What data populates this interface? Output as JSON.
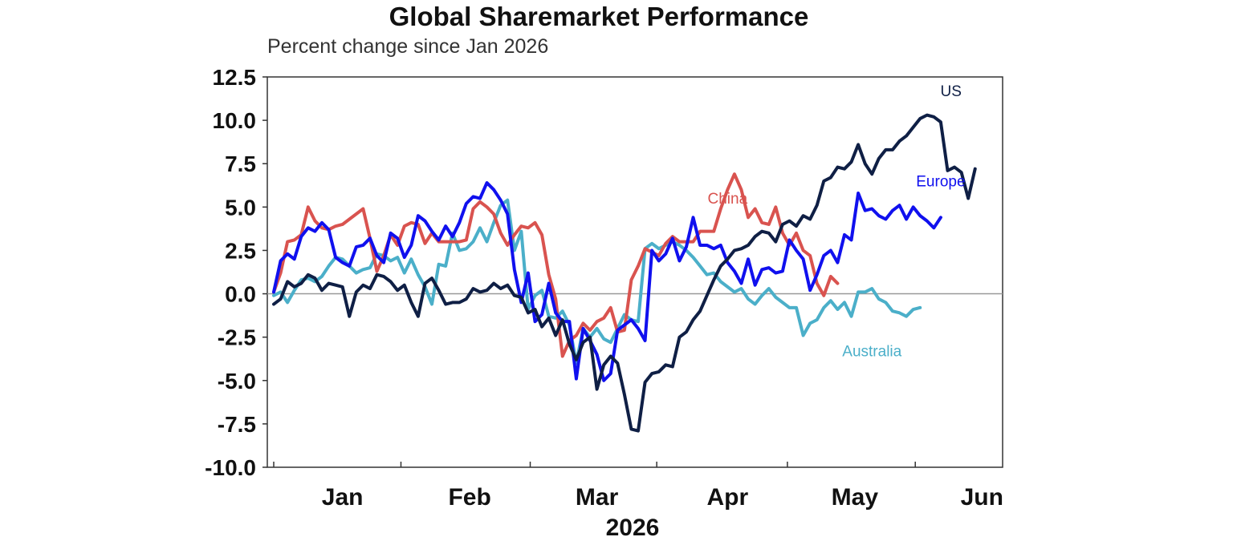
{
  "chart_data": {
    "type": "line",
    "title": "Global Sharemarket Performance",
    "subtitle": "Percent change since Jan 2026",
    "xlabel": "2026",
    "ylabel": "",
    "ylim": [
      -10.0,
      12.5
    ],
    "xlim": [
      0,
      106
    ],
    "yticks": [
      "12.5",
      "10.0",
      "7.5",
      "5.0",
      "2.5",
      "0.0",
      "-2.5",
      "-5.0",
      "-7.5",
      "-10.0"
    ],
    "ytick_values": [
      12.5,
      10.0,
      7.5,
      5.0,
      2.5,
      0.0,
      -2.5,
      -5.0,
      -7.5,
      -10.0
    ],
    "xticks": [
      {
        "label": "Jan",
        "x": 10
      },
      {
        "label": "Feb",
        "x": 28.5
      },
      {
        "label": "Mar",
        "x": 47
      },
      {
        "label": "Apr",
        "x": 66
      },
      {
        "label": "May",
        "x": 84.5
      },
      {
        "label": "Jun",
        "x": 103
      }
    ],
    "xtick_marks": [
      0,
      18.5,
      37.3,
      55.7,
      74.7,
      93.3
    ],
    "zero_line": true,
    "grid": false,
    "series": [
      {
        "name": "US",
        "color": "#0f1f45",
        "values": [
          -0.6,
          -0.3,
          0.7,
          0.4,
          0.6,
          1.1,
          0.9,
          0.2,
          0.6,
          0.5,
          0.4,
          -1.3,
          0.1,
          0.5,
          0.3,
          1.1,
          1.0,
          0.7,
          0.2,
          0.5,
          -0.5,
          -1.3,
          0.6,
          0.9,
          0.2,
          -0.6,
          -0.5,
          -0.5,
          -0.3,
          0.3,
          0.1,
          0.2,
          0.6,
          0.3,
          0.5,
          -0.1,
          -0.2,
          -1.1,
          -0.9,
          -1.9,
          -1.4,
          -2.4,
          -1.5,
          -2.9,
          -3.8,
          -2.8,
          -2.5,
          -5.5,
          -4.1,
          -3.6,
          -4.0,
          -5.8,
          -7.8,
          -7.9,
          -5.1,
          -4.6,
          -4.5,
          -4.1,
          -4.2,
          -2.5,
          -2.2,
          -1.5,
          -1.0,
          -0.1,
          0.8,
          1.6,
          2.0,
          2.5,
          2.6,
          2.8,
          3.3,
          3.6,
          3.5,
          3.0,
          4.0,
          4.2,
          3.9,
          4.5,
          4.3,
          5.1,
          6.5,
          6.7,
          7.3,
          7.2,
          7.6,
          8.6,
          7.5,
          6.9,
          7.8,
          8.3,
          8.3,
          8.8,
          9.1,
          9.6,
          10.1,
          10.3,
          10.2,
          9.9,
          7.1,
          7.3,
          7.0,
          5.5,
          7.2
        ],
        "label_pos": [
          98.5,
          11.4
        ]
      },
      {
        "name": "Europe",
        "color": "#1010ee",
        "values": [
          0.1,
          1.9,
          2.3,
          2.0,
          3.3,
          3.8,
          3.6,
          4.1,
          3.7,
          2.1,
          1.8,
          1.6,
          2.7,
          2.8,
          3.2,
          2.2,
          1.8,
          3.5,
          3.2,
          2.1,
          2.8,
          4.5,
          4.2,
          3.6,
          3.1,
          3.9,
          3.3,
          4.1,
          5.2,
          5.6,
          5.5,
          6.4,
          6.0,
          5.4,
          4.6,
          1.4,
          -0.5,
          1.2,
          -1.6,
          -1.2,
          0.6,
          -1.1,
          -1.6,
          -1.6,
          -4.9,
          -2.0,
          -2.7,
          -3.5,
          -5.0,
          -4.6,
          -2.1,
          -1.8,
          -1.5,
          -2.0,
          -2.7,
          2.5,
          1.9,
          2.3,
          3.2,
          1.9,
          2.7,
          4.4,
          2.8,
          2.8,
          2.6,
          2.8,
          1.8,
          1.3,
          0.6,
          2.0,
          0.5,
          1.4,
          1.5,
          1.2,
          1.3,
          3.1,
          2.5,
          2.0,
          0.2,
          1.1,
          2.2,
          2.5,
          1.8,
          3.4,
          3.1,
          5.8,
          4.8,
          4.9,
          4.5,
          4.3,
          4.8,
          5.1,
          4.3,
          5.0,
          4.5,
          4.2,
          3.8,
          4.4
        ],
        "label_pos": [
          97.0,
          6.2
        ]
      },
      {
        "name": "China",
        "color": "#d9534f",
        "values": [
          0.1,
          1.2,
          3.0,
          3.1,
          3.4,
          5.0,
          4.2,
          3.8,
          3.7,
          3.9,
          4.0,
          4.3,
          4.6,
          4.9,
          3.2,
          1.3,
          2.2,
          3.4,
          2.8,
          3.9,
          4.1,
          4.0,
          2.9,
          3.5,
          3.0,
          3.0,
          3.0,
          3.0,
          3.1,
          4.9,
          5.3,
          5.0,
          4.6,
          3.5,
          2.8,
          3.4,
          3.9,
          3.8,
          4.1,
          3.4,
          1.1,
          -0.3,
          -3.6,
          -2.7,
          -2.4,
          -1.7,
          -2.1,
          -1.6,
          -1.4,
          -0.8,
          -2.2,
          -2.1,
          0.8,
          1.6,
          2.6,
          2.4,
          2.2,
          2.9,
          3.3,
          3.0,
          3.0,
          3.0,
          3.6,
          3.6,
          3.6,
          4.9,
          6.0,
          6.9,
          6.0,
          4.4,
          4.9,
          4.1,
          4.0,
          5.0,
          3.5,
          2.8,
          3.5,
          2.5,
          2.2,
          0.6,
          -0.1,
          1.0,
          0.6
        ],
        "label_pos": [
          66.0,
          5.2
        ]
      },
      {
        "name": "Australia",
        "color": "#4bafc9",
        "values": [
          -0.1,
          0.1,
          -0.5,
          0.2,
          0.8,
          0.9,
          0.7,
          1.0,
          1.6,
          2.1,
          2.0,
          1.6,
          1.2,
          1.4,
          1.5,
          2.3,
          2.2,
          1.9,
          2.1,
          1.2,
          2.0,
          1.1,
          0.4,
          -0.6,
          1.7,
          1.6,
          3.5,
          2.5,
          2.6,
          3.0,
          3.8,
          3.0,
          4.1,
          5.1,
          5.4,
          2.5,
          3.6,
          -0.9,
          -0.1,
          0.2,
          -1.3,
          -1.4,
          -1.0,
          -1.8,
          -4.0,
          -2.0,
          -2.5,
          -2.0,
          -2.6,
          -2.8,
          -2.0,
          -1.2,
          -1.5,
          -1.6,
          2.6,
          2.9,
          2.6,
          2.8,
          3.0,
          2.8,
          2.5,
          2.1,
          1.6,
          1.1,
          1.2,
          0.7,
          0.4,
          0.1,
          0.3,
          -0.3,
          -0.6,
          -0.1,
          0.3,
          -0.2,
          -0.5,
          -0.8,
          -0.8,
          -2.4,
          -1.7,
          -1.5,
          -0.8,
          -0.4,
          -0.9,
          -0.5,
          -1.3,
          0.1,
          0.1,
          0.3,
          -0.3,
          -0.5,
          -1.0,
          -1.1,
          -1.3,
          -0.9,
          -0.8
        ],
        "label_pos": [
          87.0,
          -3.6
        ]
      }
    ]
  }
}
